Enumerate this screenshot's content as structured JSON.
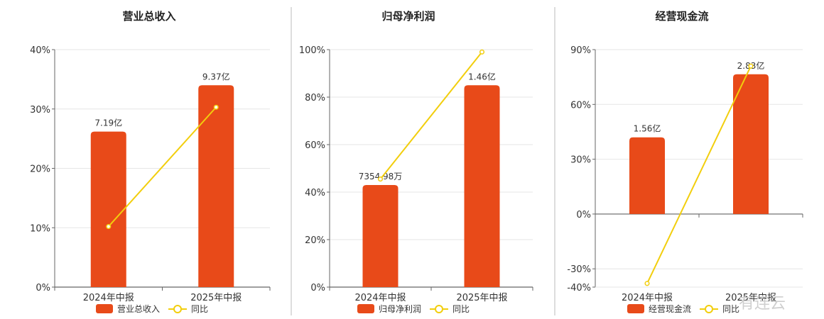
{
  "chart_data": [
    {
      "type": "bar",
      "title": "营业总收入",
      "categories": [
        "2024年中报",
        "2025年中报"
      ],
      "series": [
        {
          "name": "营业总收入",
          "type": "bar",
          "values": [
            26.2,
            34.0
          ],
          "labels": [
            "7.19亿",
            "9.37亿"
          ]
        },
        {
          "name": "同比",
          "type": "line",
          "values": [
            10.2,
            30.3
          ]
        }
      ],
      "ylim": [
        0,
        40
      ],
      "yticks": [
        0,
        10,
        20,
        30,
        40
      ],
      "ytick_labels": [
        "0%",
        "10%",
        "20%",
        "30%",
        "40%"
      ],
      "grid": true,
      "legend": "bottom"
    },
    {
      "type": "bar",
      "title": "归母净利润",
      "categories": [
        "2024年中报",
        "2025年中报"
      ],
      "series": [
        {
          "name": "归母净利润",
          "type": "bar",
          "values": [
            43,
            85
          ],
          "labels": [
            "7354.98万",
            "1.46亿"
          ]
        },
        {
          "name": "同比",
          "type": "line",
          "values": [
            45.5,
            99
          ]
        }
      ],
      "ylim": [
        0,
        100
      ],
      "yticks": [
        0,
        20,
        40,
        60,
        80,
        100
      ],
      "ytick_labels": [
        "0%",
        "20%",
        "40%",
        "60%",
        "80%",
        "100%"
      ],
      "grid": true,
      "legend": "bottom"
    },
    {
      "type": "bar",
      "title": "经营现金流",
      "categories": [
        "2024年中报",
        "2025年中报"
      ],
      "series": [
        {
          "name": "经营现金流",
          "type": "bar",
          "values": [
            42,
            76.5
          ],
          "labels": [
            "1.56亿",
            "2.83亿"
          ]
        },
        {
          "name": "同比",
          "type": "line",
          "values": [
            -38,
            81
          ]
        }
      ],
      "ylim": [
        -40,
        90
      ],
      "yticks": [
        -40,
        -30,
        0,
        30,
        60,
        90
      ],
      "ytick_labels": [
        "-40%",
        "-30%",
        "0%",
        "30%",
        "60%",
        "90%"
      ],
      "grid": true,
      "legend": "bottom"
    }
  ],
  "colors": {
    "bar": "#E84A19",
    "line": "#F2CE0D",
    "grid": "#e6e6e6",
    "axis": "#666666",
    "divider": "#bbbbbb"
  },
  "watermark": "有连云"
}
